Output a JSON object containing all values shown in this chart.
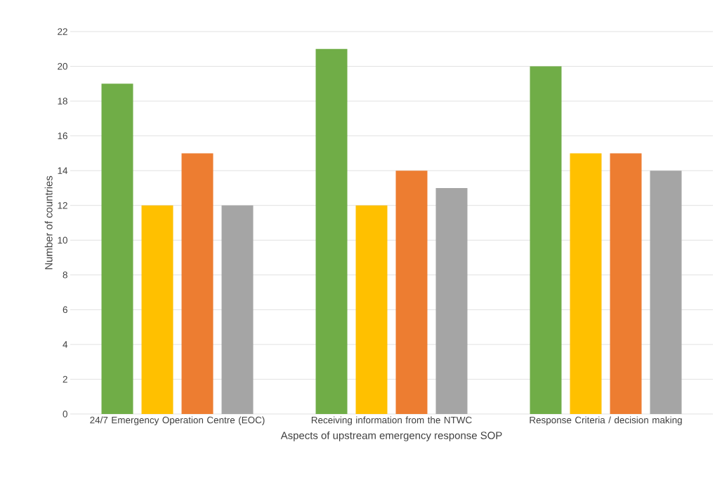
{
  "chart_data": {
    "type": "bar",
    "xlabel": "Aspects of upstream emergency response SOP",
    "ylabel": "Number of countries",
    "categories": [
      "24/7 Emergency Operation Centre (EOC)",
      "Receiving information from the NTWC",
      "Response Criteria / decision making"
    ],
    "series": [
      {
        "color": "#70ad47",
        "values": [
          19,
          21,
          20
        ]
      },
      {
        "color": "#ffc000",
        "values": [
          12,
          12,
          15
        ]
      },
      {
        "color": "#ed7d31",
        "values": [
          15,
          14,
          15
        ]
      },
      {
        "color": "#a5a5a5",
        "values": [
          12,
          13,
          14
        ]
      }
    ],
    "ylim": [
      0,
      22
    ],
    "yticks": [
      0,
      2,
      4,
      6,
      8,
      10,
      12,
      14,
      16,
      18,
      20,
      22
    ],
    "grid": "y"
  }
}
